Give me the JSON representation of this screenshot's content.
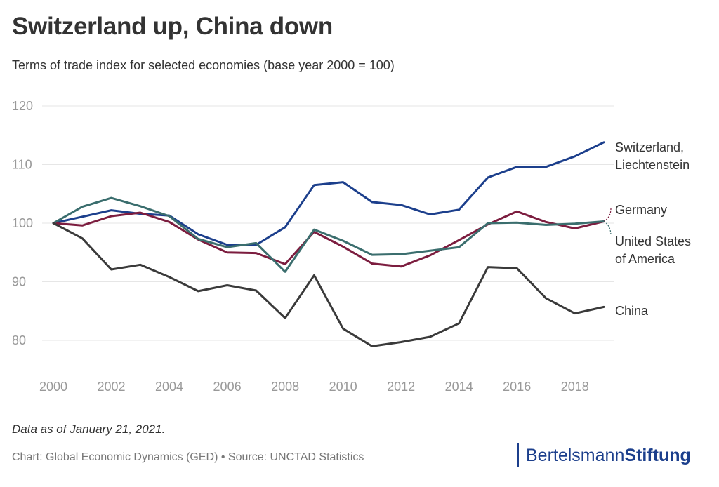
{
  "header": {
    "title": "Switzerland up, China down",
    "subtitle": "Terms of trade index for selected economies (base year 2000 = 100)"
  },
  "footer": {
    "note": "Data as of January 21, 2021.",
    "credit": "Chart: Global Economic Dynamics (GED) • Source: UNCTAD Statistics",
    "logo_part1": "Bertelsmann",
    "logo_part2": "Stiftung"
  },
  "chart_data": {
    "type": "line",
    "title": "Switzerland up, China down",
    "xlabel": "",
    "ylabel": "",
    "x": [
      2000,
      2001,
      2002,
      2003,
      2004,
      2005,
      2006,
      2007,
      2008,
      2009,
      2010,
      2011,
      2012,
      2013,
      2014,
      2015,
      2016,
      2017,
      2018,
      2019
    ],
    "xticks": [
      "2000",
      "2002",
      "2004",
      "2006",
      "2008",
      "2010",
      "2012",
      "2014",
      "2016",
      "2018"
    ],
    "yticks": [
      "80",
      "90",
      "100",
      "110",
      "120"
    ],
    "xlim": [
      2000,
      2019
    ],
    "ylim": [
      75,
      120
    ],
    "grid": true,
    "series": [
      {
        "name": "Switzerland, Liechtenstein",
        "label_lines": [
          "Switzerland,",
          "Liechtenstein"
        ],
        "color": "#1c3f8c",
        "values": [
          100,
          101.1,
          102.2,
          101.6,
          101.3,
          98.1,
          96.3,
          96.3,
          99.3,
          106.5,
          107,
          103.6,
          103.1,
          101.5,
          102.3,
          107.8,
          109.6,
          109.6,
          111.4,
          113.8
        ]
      },
      {
        "name": "Germany",
        "label_lines": [
          "Germany"
        ],
        "color": "#7c1d3f",
        "values": [
          100,
          99.6,
          101.2,
          101.8,
          100.2,
          97.2,
          95,
          94.9,
          93,
          98.5,
          96,
          93.1,
          92.6,
          94.5,
          97.1,
          99.8,
          102,
          100.2,
          99.1,
          100.3
        ]
      },
      {
        "name": "United States of America",
        "label_lines": [
          "United States",
          "of America"
        ],
        "color": "#3b6e6e",
        "values": [
          100,
          102.8,
          104.3,
          102.9,
          101.2,
          97.3,
          95.9,
          96.6,
          91.7,
          98.9,
          97,
          94.6,
          94.7,
          95.3,
          95.9,
          100,
          100.1,
          99.7,
          99.9,
          100.3
        ]
      },
      {
        "name": "China",
        "label_lines": [
          "China"
        ],
        "color": "#3a3a3a",
        "values": [
          100,
          97.4,
          92.1,
          92.9,
          90.8,
          88.4,
          89.4,
          88.5,
          83.8,
          91.1,
          82,
          79,
          79.7,
          80.6,
          82.9,
          92.5,
          92.3,
          87.2,
          84.6,
          85.7
        ]
      }
    ]
  }
}
